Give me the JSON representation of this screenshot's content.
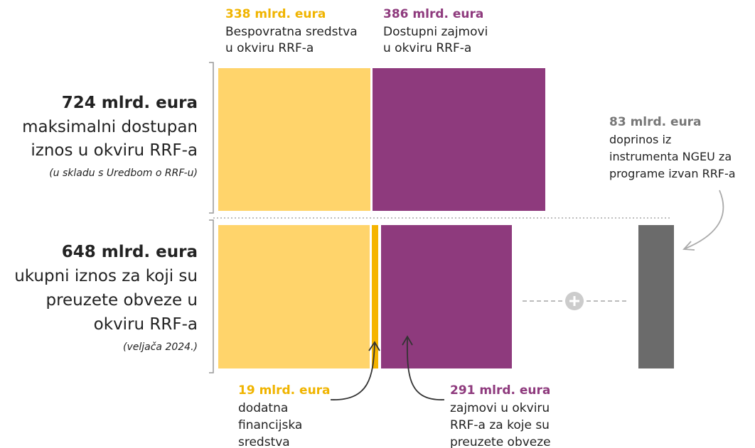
{
  "grants": {
    "amount": "338 mlrd. eura",
    "lines": [
      "Bespovratna sredstva",
      "u okviru RRF-a"
    ]
  },
  "loans": {
    "amount": "386 mlrd. eura",
    "lines": [
      "Dostupni zajmovi",
      "u okviru RRF-a"
    ]
  },
  "maximum": {
    "amount": "724 mlrd. eura",
    "lines": [
      "maksimalni dostupan",
      "iznos u okviru RRF-a"
    ],
    "note": "(u skladu s Uredbom o RRF-u)"
  },
  "committed": {
    "amount": "648 mlrd. eura",
    "lines": [
      "ukupni iznos za koji su",
      "preuzete obveze u",
      "okviru RRF-a"
    ],
    "note": "(veljača 2024.)"
  },
  "ngeu": {
    "amount": "83 mlrd. eura",
    "lines": [
      "doprinos iz",
      "instrumenta NGEU za",
      "programe izvan RRF-a"
    ]
  },
  "additional": {
    "amount": "19 mlrd. eura",
    "lines": [
      "dodatna",
      "financijska",
      "sredstva"
    ]
  },
  "committed_loans": {
    "amount": "291 mlrd. eura",
    "lines": [
      "zajmovi u okviru",
      "RRF-a za koje su",
      "preuzete obveze"
    ]
  }
}
